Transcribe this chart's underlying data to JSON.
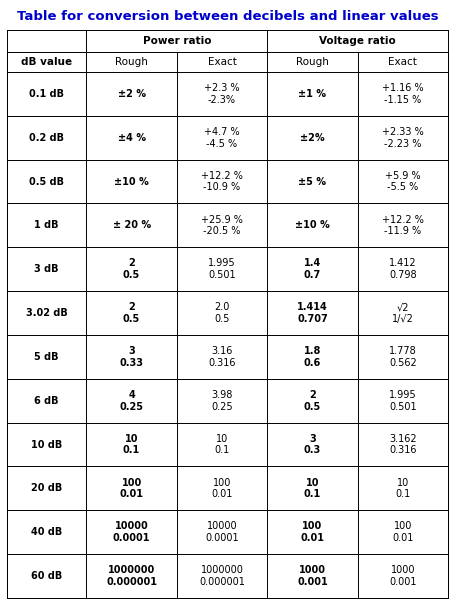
{
  "title": "Table for conversion between decibels and linear values",
  "title_color": "#0000CC",
  "background_color": "#FFFFFF",
  "header1": "Power ratio",
  "header2": "Voltage ratio",
  "col_headers": [
    "dB value",
    "Rough",
    "Exact",
    "Rough",
    "Exact"
  ],
  "rows": [
    {
      "db": "0.1 dB",
      "p_rough": "±2 %",
      "p_exact": "+2.3 %\n-2.3%",
      "v_rough": "±1 %",
      "v_exact": "+1.16 %\n-1.15 %"
    },
    {
      "db": "0.2 dB",
      "p_rough": "±4 %",
      "p_exact": "+4.7 %\n-4.5 %",
      "v_rough": "±2%",
      "v_exact": "+2.33 %\n-2.23 %"
    },
    {
      "db": "0.5 dB",
      "p_rough": "±10 %",
      "p_exact": "+12.2 %\n-10.9 %",
      "v_rough": "±5 %",
      "v_exact": "+5.9 %\n-5.5 %"
    },
    {
      "db": "1 dB",
      "p_rough": "± 20 %",
      "p_exact": "+25.9 %\n-20.5 %",
      "v_rough": "±10 %",
      "v_exact": "+12.2 %\n-11.9 %"
    },
    {
      "db": "3 dB",
      "p_rough": "2\n0.5",
      "p_exact": "1.995\n0.501",
      "v_rough": "1.4\n0.7",
      "v_exact": "1.412\n0.798"
    },
    {
      "db": "3.02 dB",
      "p_rough": "2\n0.5",
      "p_exact": "2.0\n0.5",
      "v_rough": "1.414\n0.707",
      "v_exact": "√2\n1/√2"
    },
    {
      "db": "5 dB",
      "p_rough": "3\n0.33",
      "p_exact": "3.16\n0.316",
      "v_rough": "1.8\n0.6",
      "v_exact": "1.778\n0.562"
    },
    {
      "db": "6 dB",
      "p_rough": "4\n0.25",
      "p_exact": "3.98\n0.25",
      "v_rough": "2\n0.5",
      "v_exact": "1.995\n0.501"
    },
    {
      "db": "10 dB",
      "p_rough": "10\n0.1",
      "p_exact": "10\n0.1",
      "v_rough": "3\n0.3",
      "v_exact": "3.162\n0.316"
    },
    {
      "db": "20 dB",
      "p_rough": "100\n0.01",
      "p_exact": "100\n0.01",
      "v_rough": "10\n0.1",
      "v_exact": "10\n0.1"
    },
    {
      "db": "40 dB",
      "p_rough": "10000\n0.0001",
      "p_exact": "10000\n0.0001",
      "v_rough": "100\n0.01",
      "v_exact": "100\n0.01"
    },
    {
      "db": "60 dB",
      "p_rough": "1000000\n0.000001",
      "p_exact": "1000000\n0.000001",
      "v_rough": "1000\n0.001",
      "v_exact": "1000\n0.001"
    }
  ],
  "figsize": [
    4.55,
    6.06
  ],
  "dpi": 100,
  "title_fontsize": 9.5,
  "header_fontsize": 7.5,
  "cell_fontsize": 7.0,
  "lw": 0.7
}
